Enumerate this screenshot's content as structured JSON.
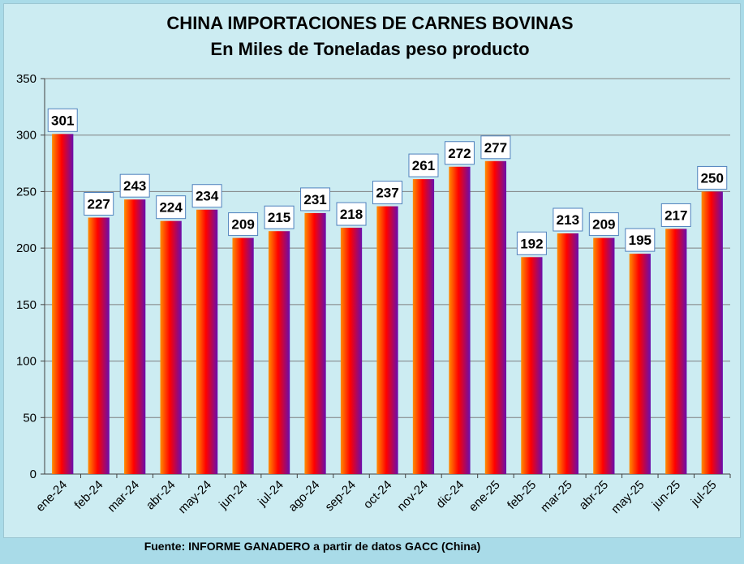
{
  "chart_data": {
    "type": "bar",
    "title": "CHINA IMPORTACIONES DE CARNES BOVINAS",
    "subtitle": "En Miles de Toneladas peso producto",
    "categories": [
      "ene-24",
      "feb-24",
      "mar-24",
      "abr-24",
      "may-24",
      "jun-24",
      "jul-24",
      "ago-24",
      "sep-24",
      "oct-24",
      "nov-24",
      "dic-24",
      "ene-25",
      "feb-25",
      "mar-25",
      "abr-25",
      "may-25",
      "jun-25",
      "jul-25"
    ],
    "values": [
      301,
      227,
      243,
      224,
      234,
      209,
      215,
      231,
      218,
      237,
      261,
      272,
      277,
      192,
      213,
      209,
      195,
      217,
      250
    ],
    "ylim": [
      0,
      350
    ],
    "yticks": [
      0,
      50,
      100,
      150,
      200,
      250,
      300,
      350
    ],
    "grid": true,
    "legend": "none",
    "bar_gradient": [
      "#ff8c00",
      "#ff0000",
      "#6a0dad"
    ]
  },
  "source": "Fuente: INFORME GANADERO a partir de datos GACC (China)"
}
